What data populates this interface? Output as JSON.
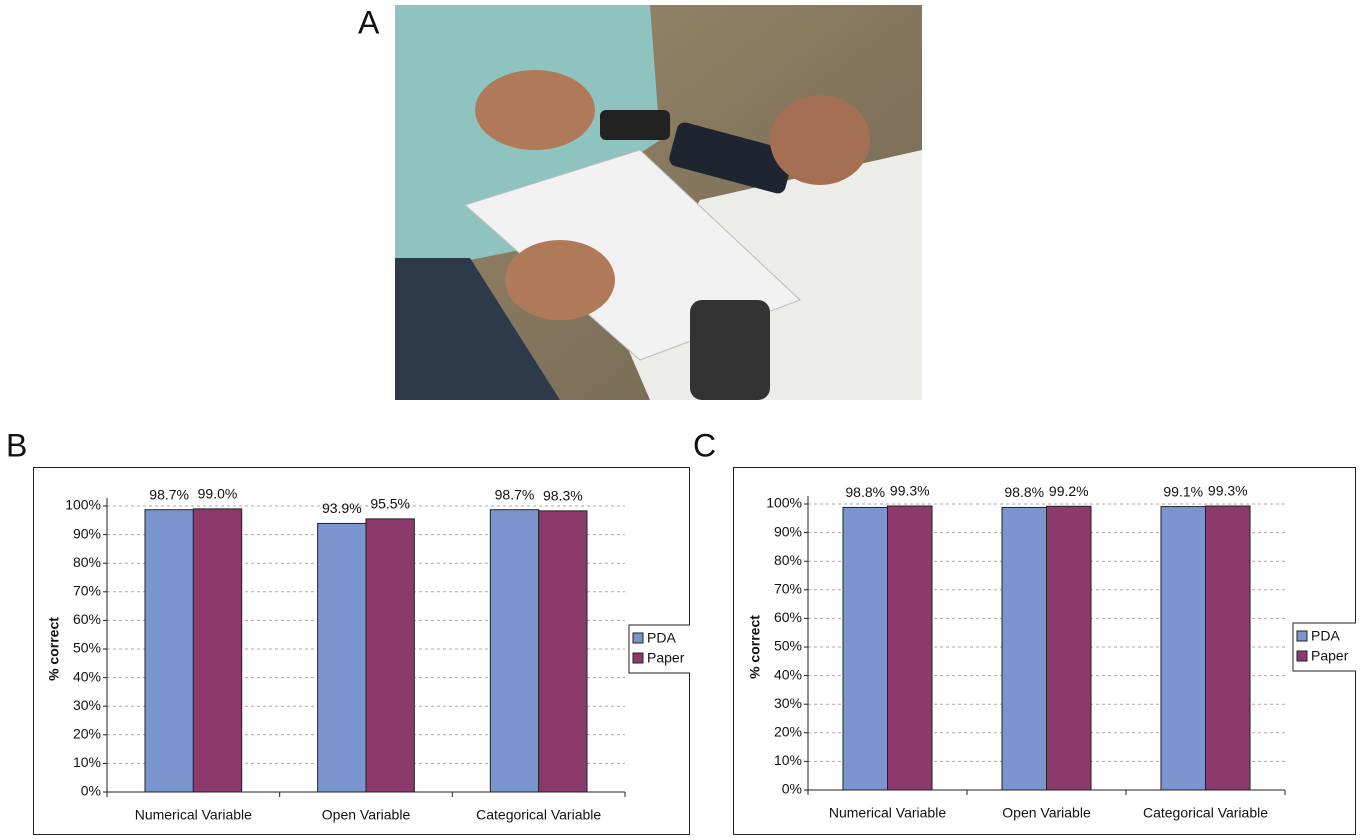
{
  "panel_labels": [
    "A",
    "B",
    "C"
  ],
  "chart_data": [
    {
      "type": "bar",
      "y_label": "% correct",
      "categories": [
        "Numerical Variable",
        "Open Variable",
        "Categorical Variable"
      ],
      "series": [
        {
          "name": "PDA",
          "color": "#7b96cf",
          "values": [
            98.7,
            93.9,
            98.7
          ],
          "value_labels": [
            "98.7%",
            "93.9%",
            "98.7%"
          ]
        },
        {
          "name": "Paper",
          "color": "#8b3a6b",
          "values": [
            99.0,
            95.5,
            98.3
          ],
          "value_labels": [
            "99.0%",
            "95.5%",
            "98.3%"
          ]
        }
      ],
      "ylim": [
        0,
        100
      ],
      "yticks": [
        {
          "value": 0,
          "label": "0%"
        },
        {
          "value": 10,
          "label": "10%"
        },
        {
          "value": 20,
          "label": "20%"
        },
        {
          "value": 30,
          "label": "30%"
        },
        {
          "value": 40,
          "label": "40%"
        },
        {
          "value": 50,
          "label": "50%"
        },
        {
          "value": 60,
          "label": "60%"
        },
        {
          "value": 70,
          "label": "70%"
        },
        {
          "value": 80,
          "label": "80%"
        },
        {
          "value": 90,
          "label": "90%"
        },
        {
          "value": 100,
          "label": "100%"
        }
      ],
      "grid": true,
      "legend": "right"
    },
    {
      "type": "bar",
      "y_label": "% correct",
      "categories": [
        "Numerical Variable",
        "Open Variable",
        "Categorical Variable"
      ],
      "series": [
        {
          "name": "PDA",
          "color": "#7b96cf",
          "values": [
            98.8,
            98.8,
            99.1
          ],
          "value_labels": [
            "98.8%",
            "98.8%",
            "99.1%"
          ]
        },
        {
          "name": "Paper",
          "color": "#8b3a6b",
          "values": [
            99.3,
            99.2,
            99.3
          ],
          "value_labels": [
            "99.3%",
            "99.2%",
            "99.3%"
          ]
        }
      ],
      "ylim": [
        0,
        100
      ],
      "yticks": [
        {
          "value": 0,
          "label": "0%"
        },
        {
          "value": 10,
          "label": "10%"
        },
        {
          "value": 20,
          "label": "20%"
        },
        {
          "value": 30,
          "label": "30%"
        },
        {
          "value": 40,
          "label": "40%"
        },
        {
          "value": 50,
          "label": "50%"
        },
        {
          "value": 60,
          "label": "60%"
        },
        {
          "value": 70,
          "label": "70%"
        },
        {
          "value": 80,
          "label": "80%"
        },
        {
          "value": 90,
          "label": "90%"
        },
        {
          "value": 100,
          "label": "100%"
        }
      ],
      "grid": true,
      "legend": "right"
    }
  ]
}
